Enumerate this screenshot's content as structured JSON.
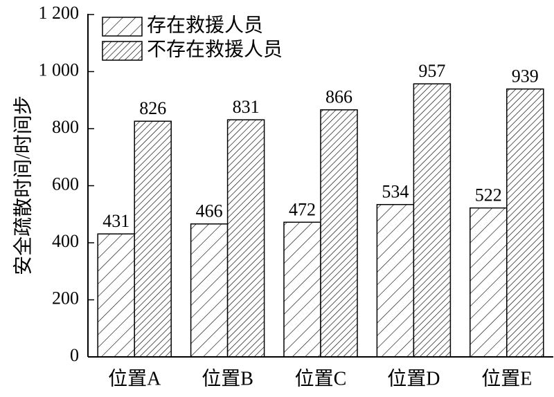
{
  "chart_data": {
    "type": "bar",
    "y_label": "安全疏散时间/时间步",
    "categories": [
      "位置A",
      "位置B",
      "位置C",
      "位置D",
      "位置E"
    ],
    "series": [
      {
        "name": "存在救援人员",
        "color": "#000000",
        "values": [
          431,
          466,
          472,
          534,
          522
        ]
      },
      {
        "name": "不存在救援人员",
        "color": "#000000",
        "values": [
          826,
          831,
          866,
          957,
          939
        ]
      }
    ],
    "ylim": [
      0,
      1200
    ],
    "yticks": [
      0,
      200,
      400,
      600,
      800,
      {
        "value": 1000,
        "label": "1 000"
      },
      {
        "value": 1200,
        "label": "1 200"
      }
    ],
    "legend": "top-left"
  }
}
